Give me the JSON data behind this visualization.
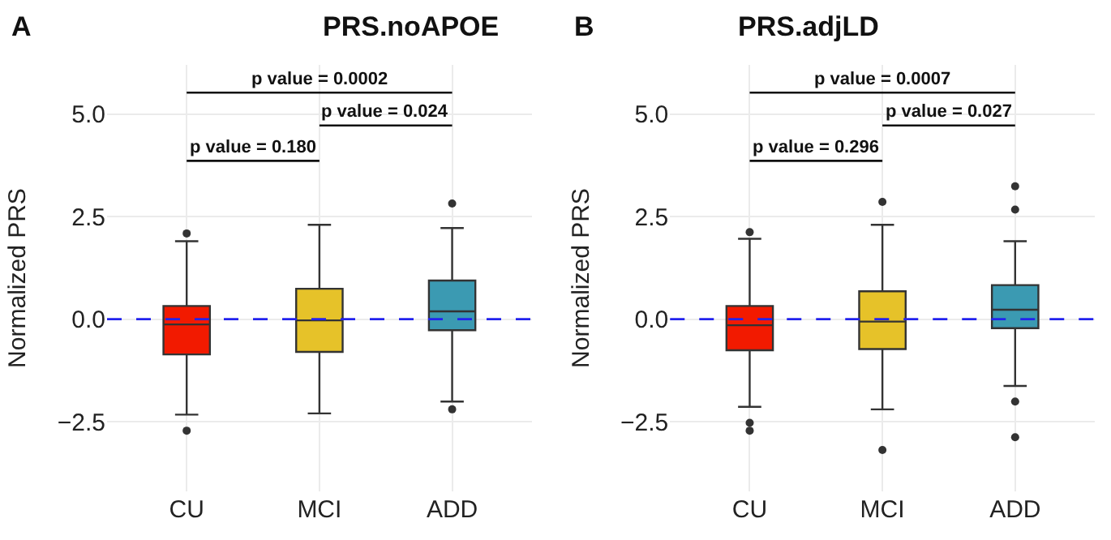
{
  "chart_data": [
    {
      "type": "box",
      "title": "PRS.noAPOE",
      "ylabel": "Normalized PRS",
      "categories": [
        "CU",
        "MCI",
        "ADD"
      ],
      "colors": [
        "#f21a00",
        "#e6c229",
        "#3b9ab2"
      ],
      "boxes": [
        {
          "low": -2.33,
          "q1": -0.86,
          "median": -0.13,
          "q3": 0.32,
          "high": 1.9,
          "outliers": [
            2.09,
            -2.72
          ]
        },
        {
          "low": -2.3,
          "q1": -0.8,
          "median": -0.03,
          "q3": 0.74,
          "high": 2.3
        },
        {
          "low": -2.01,
          "q1": -0.27,
          "median": 0.19,
          "q3": 0.94,
          "high": 2.22,
          "outliers": [
            2.82,
            -2.2
          ]
        }
      ],
      "ylim": [
        -4.2,
        6.2
      ],
      "yticks": [
        {
          "value": -2.5,
          "label": "−2.5"
        },
        {
          "value": 0,
          "label": "0.0"
        },
        {
          "value": 2.5,
          "label": "2.5"
        },
        {
          "value": 5,
          "label": "5.0"
        }
      ],
      "grid": true,
      "ref_lines": [
        {
          "axis": "y",
          "value": 0,
          "color": "#2222ee",
          "line_style": "dashed"
        }
      ],
      "annotations": [
        "A",
        "p value = 0.0002",
        "p value = 0.024",
        "p value = 0.180"
      ]
    },
    {
      "type": "box",
      "title": "PRS.adjLD",
      "ylabel": "Normalized PRS",
      "categories": [
        "CU",
        "MCI",
        "ADD"
      ],
      "colors": [
        "#f21a00",
        "#e6c229",
        "#3b9ab2"
      ],
      "boxes": [
        {
          "low": -2.14,
          "q1": -0.76,
          "median": -0.15,
          "q3": 0.32,
          "high": 1.96,
          "outliers": [
            2.12,
            -2.53,
            -2.72
          ]
        },
        {
          "low": -2.2,
          "q1": -0.73,
          "median": -0.06,
          "q3": 0.68,
          "high": 2.3,
          "outliers": [
            2.86,
            -3.19
          ]
        },
        {
          "low": -1.63,
          "q1": -0.22,
          "median": 0.23,
          "q3": 0.83,
          "high": 1.9,
          "outliers": [
            2.67,
            3.24,
            -2.01,
            -2.88
          ]
        }
      ],
      "ylim": [
        -4.2,
        6.2
      ],
      "yticks": [
        {
          "value": -2.5,
          "label": "−2.5"
        },
        {
          "value": 0,
          "label": "0.0"
        },
        {
          "value": 2.5,
          "label": "2.5"
        },
        {
          "value": 5,
          "label": "5.0"
        }
      ],
      "grid": true,
      "ref_lines": [
        {
          "axis": "y",
          "value": 0,
          "color": "#2222ee",
          "line_style": "dashed"
        }
      ],
      "annotations": [
        "B",
        "p value = 0.0007",
        "p value = 0.027",
        "p value = 0.296"
      ]
    }
  ]
}
